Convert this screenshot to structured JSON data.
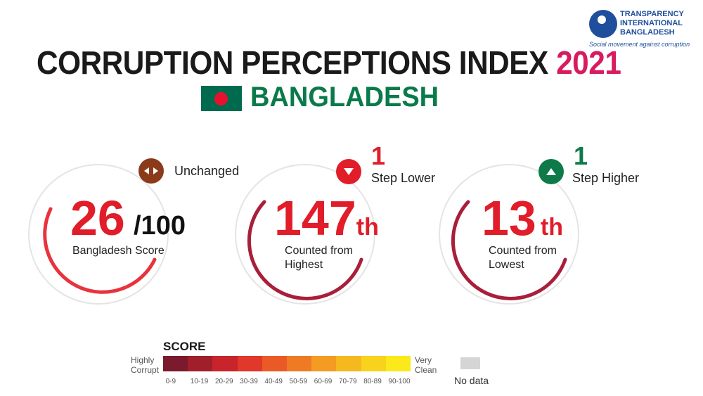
{
  "header": {
    "title": "CORRUPTION PERCEPTIONS INDEX",
    "year": "2021",
    "country": "BANGLADESH"
  },
  "logo": {
    "line1": "TRANSPARENCY",
    "line2": "INTERNATIONAL",
    "line3": "BANGLADESH",
    "tagline": "Social movement against corruption"
  },
  "score_card": {
    "value": "26",
    "out_of": "/100",
    "label": "Bangladesh Score",
    "status": "Unchanged",
    "score_fraction": 0.26
  },
  "rank_high": {
    "value": "147",
    "suffix": "th",
    "label_line1": "Counted from",
    "label_line2": "Highest",
    "change_num": "1",
    "change_label": "Step Lower"
  },
  "rank_low": {
    "value": "13",
    "suffix": "th",
    "label_line1": "Counted from",
    "label_line2": "Lowest",
    "change_num": "1",
    "change_label": "Step Higher"
  },
  "legend": {
    "title": "SCORE",
    "left_label_1": "Highly",
    "left_label_2": "Corrupt",
    "right_label_1": "Very",
    "right_label_2": "Clean",
    "no_data": "No data",
    "ranges": [
      "0-9",
      "10-19",
      "20-29",
      "30-39",
      "40-49",
      "50-59",
      "60-69",
      "70-79",
      "80-89",
      "90-100"
    ],
    "colors": [
      "#7a1a2c",
      "#a11f2b",
      "#c8242c",
      "#e0382a",
      "#ea5a26",
      "#ef7a24",
      "#f39b22",
      "#f6b81f",
      "#f8d21d",
      "#fbe91c"
    ]
  },
  "colors": {
    "accent_red": "#e11d2a",
    "year_pink": "#d81b60",
    "country_green": "#0a7a4a",
    "unchanged_brown": "#8b3a1a",
    "lower_red": "#e11d2a",
    "higher_green": "#0e7a4a"
  }
}
